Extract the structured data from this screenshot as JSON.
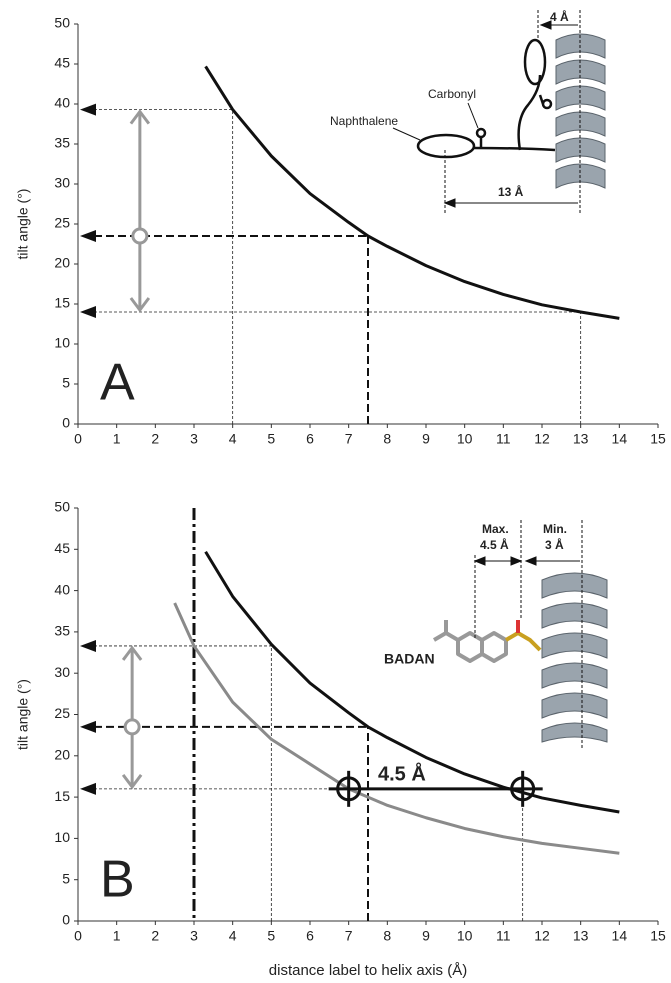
{
  "chart_data": [
    {
      "type": "line",
      "panel_label": "A",
      "y_label": "tilt angle (°)",
      "xlim": [
        0,
        15
      ],
      "xticks": [
        0,
        1,
        2,
        3,
        4,
        5,
        6,
        7,
        8,
        9,
        10,
        11,
        12,
        13,
        14,
        15
      ],
      "ylim": [
        0,
        50
      ],
      "yticks": [
        0,
        5,
        10,
        15,
        20,
        25,
        30,
        35,
        40,
        45,
        50
      ],
      "series": [
        {
          "color": "#111111",
          "x": [
            3.3,
            4,
            5,
            6,
            7,
            7.5,
            8,
            9,
            10,
            11,
            12,
            13,
            14
          ],
          "values": [
            44.7,
            39.3,
            33.5,
            28.8,
            25.2,
            23.5,
            22.2,
            19.8,
            17.8,
            16.2,
            14.9,
            14.0,
            13.2
          ]
        }
      ],
      "guides": [
        {
          "x": 4,
          "y": 39.3,
          "bold": false
        },
        {
          "x": 7.5,
          "y": 23.5,
          "bold": true
        },
        {
          "x": 13,
          "y": 14,
          "bold": false
        }
      ],
      "range_arrow": {
        "x": 1.6,
        "low": 14,
        "mid": 23.5,
        "high": 39.3
      },
      "annotations": [
        "Naphthalene",
        "Carbonyl",
        "4 Å",
        "13 Å"
      ]
    },
    {
      "type": "line",
      "panel_label": "B",
      "y_label": "tilt angle (°)",
      "x_label": "distance label to helix axis (Å)",
      "xlim": [
        0,
        15
      ],
      "xticks": [
        0,
        1,
        2,
        3,
        4,
        5,
        6,
        7,
        8,
        9,
        10,
        11,
        12,
        13,
        14,
        15
      ],
      "ylim": [
        0,
        50
      ],
      "yticks": [
        0,
        5,
        10,
        15,
        20,
        25,
        30,
        35,
        40,
        45,
        50
      ],
      "series": [
        {
          "color": "#111111",
          "x": [
            3.3,
            4,
            5,
            6,
            7,
            7.5,
            8,
            9,
            10,
            11,
            12,
            13,
            14
          ],
          "values": [
            44.7,
            39.3,
            33.5,
            28.8,
            25.2,
            23.5,
            22.2,
            19.8,
            17.8,
            16.2,
            14.9,
            14.0,
            13.2
          ]
        },
        {
          "color": "#8a8a8a",
          "x": [
            2.5,
            3,
            4,
            5,
            6,
            7,
            8,
            9,
            10,
            11,
            12,
            13,
            14
          ],
          "values": [
            38.5,
            33.3,
            26.5,
            22,
            19,
            16,
            14,
            12.5,
            11.2,
            10.2,
            9.4,
            8.8,
            8.2
          ]
        }
      ],
      "guides": [
        {
          "x": 5,
          "y": 33.3,
          "bold": false
        },
        {
          "x": 7.5,
          "y": 23.5,
          "bold": true
        },
        {
          "x": 11.5,
          "y": 16,
          "bold": false
        }
      ],
      "range_arrow": {
        "x": 1.4,
        "low": 16,
        "mid": 23.5,
        "high": 33.3
      },
      "vline": 3,
      "markers": [
        {
          "x": 7,
          "y": 16
        },
        {
          "x": 11.5,
          "y": 16
        }
      ],
      "annotations": [
        "Max.",
        "4.5 Å",
        "Min.",
        "3 Å",
        "BADAN",
        "4.5 Å"
      ]
    }
  ]
}
